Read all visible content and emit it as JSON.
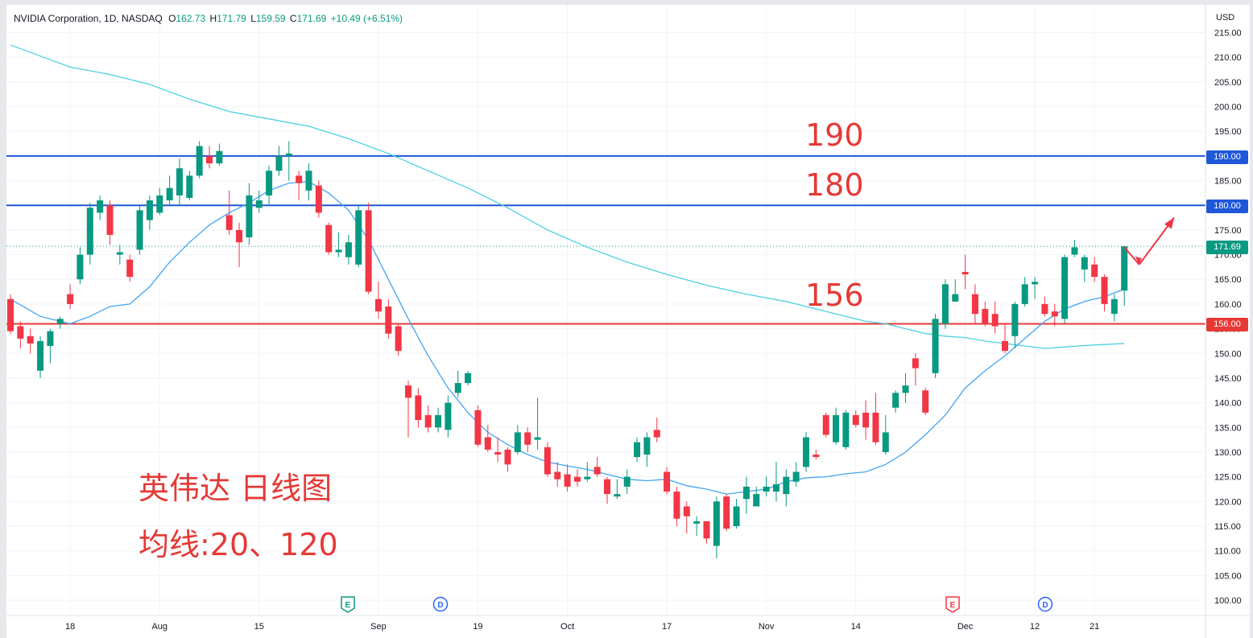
{
  "header": {
    "symbol": "NVIDIA Corporation, 1D, NASDAQ",
    "open_label": "O",
    "open": "162.73",
    "high_label": "H",
    "high": "171.79",
    "low_label": "L",
    "low": "159.59",
    "close_label": "C",
    "close": "171.69",
    "change": "+10.49 (+6.51%)"
  },
  "axis": {
    "currency": "USD"
  },
  "price_tags": {
    "level_190": "190.00",
    "level_180": "180.00",
    "last": "171.69",
    "level_156": "156.00"
  },
  "annotations": {
    "a190": "190",
    "a180": "180",
    "a156": "156",
    "title": "英伟达 日线图",
    "ma": "均线:20、120"
  },
  "event_markers": [
    {
      "label": "E",
      "color": "#089981"
    },
    {
      "label": "D",
      "color": "#2962ff"
    },
    {
      "label": "E",
      "color": "#f23645"
    },
    {
      "label": "D",
      "color": "#2962ff"
    }
  ],
  "colors": {
    "up": "#089981",
    "down": "#f23645",
    "ma20": "#42a5f5",
    "ma120": "#4dd0e1",
    "hline_blue": "#1e57d8",
    "hline_red": "#e53935",
    "annotation": "#e53935"
  },
  "chart_data": {
    "type": "candlestick",
    "ylim": [
      96,
      219
    ],
    "yticks": [
      100,
      105,
      110,
      115,
      120,
      125,
      130,
      135,
      140,
      145,
      150,
      155,
      160,
      165,
      170,
      175,
      180,
      185,
      190,
      195,
      200,
      205,
      210,
      215
    ],
    "xlim": [
      0,
      115
    ],
    "xticks": [
      {
        "label": "18",
        "x": 6
      },
      {
        "label": "Aug",
        "x": 15
      },
      {
        "label": "15",
        "x": 25
      },
      {
        "label": "Sep",
        "x": 37
      },
      {
        "label": "19",
        "x": 47
      },
      {
        "label": "Oct",
        "x": 56
      },
      {
        "label": "17",
        "x": 66
      },
      {
        "label": "Nov",
        "x": 76
      },
      {
        "label": "14",
        "x": 85
      },
      {
        "label": "Dec",
        "x": 96
      },
      {
        "label": "12",
        "x": 103
      },
      {
        "label": "21",
        "x": 109
      }
    ],
    "horizontal_levels": [
      {
        "value": 190,
        "color": "#1e57d8"
      },
      {
        "value": 180,
        "color": "#1e57d8"
      },
      {
        "value": 156,
        "color": "#e53935"
      }
    ],
    "last_price": 171.69,
    "candles": [
      [
        0,
        161.0,
        154.5,
        162.0,
        154.0
      ],
      [
        1,
        155.5,
        153.0,
        156.5,
        151.0
      ],
      [
        2,
        153.5,
        152.0,
        155.0,
        150.0
      ],
      [
        3,
        146.5,
        152.5,
        153.5,
        145.0
      ],
      [
        4,
        151.5,
        154.5,
        155.0,
        148.0
      ],
      [
        5,
        156.0,
        157.0,
        157.5,
        155.0
      ],
      [
        6,
        162.0,
        160.0,
        164.0,
        159.0
      ],
      [
        7,
        165.0,
        170.0,
        171.5,
        164.0
      ],
      [
        8,
        170.0,
        179.5,
        180.5,
        168.0
      ],
      [
        9,
        178.5,
        181.0,
        182.0,
        177.0
      ],
      [
        10,
        180.0,
        174.0,
        181.0,
        172.0
      ],
      [
        11,
        170.0,
        170.5,
        172.0,
        168.0
      ],
      [
        12,
        169.0,
        165.5,
        170.0,
        164.5
      ],
      [
        13,
        171.0,
        179.0,
        180.0,
        170.0
      ],
      [
        14,
        177.0,
        181.0,
        182.0,
        175.0
      ],
      [
        15,
        178.5,
        182.0,
        183.5,
        178.0
      ],
      [
        16,
        181.0,
        183.5,
        186.0,
        180.0
      ],
      [
        17,
        182.0,
        187.5,
        189.5,
        180.0
      ],
      [
        18,
        181.5,
        186.0,
        187.0,
        181.0
      ],
      [
        19,
        186.0,
        192.0,
        193.0,
        185.5
      ],
      [
        20,
        190.0,
        188.5,
        192.0,
        187.5
      ],
      [
        21,
        188.5,
        191.0,
        192.5,
        188.0
      ],
      [
        22,
        178.0,
        175.0,
        183.0,
        174.0
      ],
      [
        23,
        175.0,
        172.5,
        176.5,
        167.5
      ],
      [
        24,
        173.5,
        182.0,
        184.5,
        172.0
      ],
      [
        25,
        179.5,
        181.0,
        183.0,
        178.5
      ],
      [
        26,
        182.0,
        187.0,
        188.0,
        180.0
      ],
      [
        27,
        187.0,
        190.0,
        192.0,
        186.0
      ],
      [
        28,
        190.0,
        190.5,
        193.0,
        185.0
      ],
      [
        29,
        186.0,
        184.5,
        187.0,
        181.0
      ],
      [
        30,
        183.0,
        187.0,
        188.5,
        181.0
      ],
      [
        31,
        184.0,
        178.5,
        185.0,
        177.5
      ],
      [
        32,
        176.0,
        170.5,
        176.5,
        170.0
      ],
      [
        33,
        170.5,
        171.0,
        174.5,
        169.5
      ],
      [
        34,
        169.5,
        172.5,
        174.0,
        168.0
      ],
      [
        35,
        168.0,
        179.0,
        180.0,
        167.5
      ],
      [
        36,
        179.0,
        162.5,
        180.5,
        162.0
      ],
      [
        37,
        161.0,
        158.5,
        164.5,
        157.0
      ],
      [
        38,
        159.5,
        154.0,
        161.0,
        153.0
      ],
      [
        39,
        155.5,
        150.5,
        156.0,
        149.5
      ],
      [
        40,
        143.5,
        141.0,
        144.5,
        133.0
      ],
      [
        41,
        141.5,
        136.5,
        143.0,
        135.0
      ],
      [
        42,
        137.5,
        135.0,
        139.5,
        134.0
      ],
      [
        43,
        135.0,
        137.5,
        139.0,
        134.0
      ],
      [
        44,
        134.5,
        140.0,
        141.5,
        133.0
      ],
      [
        45,
        142.0,
        144.0,
        146.5,
        141.0
      ],
      [
        46,
        144.0,
        146.0,
        146.5,
        143.5
      ],
      [
        47,
        138.5,
        131.5,
        139.5,
        131.0
      ],
      [
        48,
        133.0,
        130.5,
        135.5,
        130.0
      ],
      [
        49,
        130.0,
        129.5,
        133.0,
        128.0
      ],
      [
        50,
        130.5,
        127.5,
        131.0,
        126.0
      ],
      [
        51,
        130.0,
        134.0,
        135.5,
        129.5
      ],
      [
        52,
        134.0,
        131.5,
        135.0,
        130.0
      ],
      [
        53,
        132.5,
        133.0,
        141.0,
        130.5
      ],
      [
        54,
        131.0,
        125.5,
        132.0,
        125.0
      ],
      [
        55,
        126.0,
        124.5,
        128.0,
        123.0
      ],
      [
        56,
        125.5,
        123.0,
        127.5,
        122.0
      ],
      [
        57,
        125.0,
        124.0,
        126.5,
        123.0
      ],
      [
        58,
        124.5,
        125.0,
        128.0,
        124.0
      ],
      [
        59,
        127.0,
        125.5,
        129.0,
        125.0
      ],
      [
        60,
        124.5,
        121.5,
        125.0,
        119.5
      ],
      [
        61,
        121.0,
        121.5,
        124.5,
        120.5
      ],
      [
        62,
        123.0,
        125.0,
        126.5,
        121.5
      ],
      [
        63,
        129.0,
        132.0,
        133.0,
        128.0
      ],
      [
        64,
        129.5,
        133.0,
        134.0,
        127.0
      ],
      [
        65,
        134.5,
        133.0,
        137.0,
        132.0
      ],
      [
        66,
        126.0,
        122.0,
        127.0,
        121.5
      ],
      [
        67,
        122.0,
        116.5,
        123.0,
        115.0
      ],
      [
        68,
        119.0,
        117.0,
        120.0,
        113.5
      ],
      [
        69,
        115.5,
        116.0,
        117.0,
        113.0
      ],
      [
        70,
        116.0,
        112.5,
        116.0,
        111.5
      ],
      [
        71,
        111.0,
        120.0,
        121.0,
        108.5
      ],
      [
        72,
        121.0,
        114.5,
        121.5,
        114.0
      ],
      [
        73,
        115.0,
        119.0,
        120.5,
        114.5
      ],
      [
        74,
        120.5,
        123.0,
        125.0,
        117.5
      ],
      [
        75,
        119.0,
        121.5,
        123.0,
        119.0
      ],
      [
        76,
        122.0,
        123.0,
        125.0,
        121.0
      ],
      [
        77,
        122.0,
        123.5,
        128.0,
        120.0
      ],
      [
        78,
        121.5,
        125.0,
        126.5,
        119.0
      ],
      [
        79,
        124.0,
        126.0,
        128.0,
        123.0
      ],
      [
        80,
        127.0,
        133.0,
        134.0,
        126.0
      ],
      [
        81,
        129.5,
        129.0,
        130.5,
        128.5
      ],
      [
        82,
        137.5,
        133.5,
        138.0,
        133.0
      ],
      [
        83,
        132.0,
        137.5,
        139.0,
        131.5
      ],
      [
        84,
        131.0,
        138.0,
        138.5,
        130.5
      ],
      [
        85,
        137.5,
        135.5,
        138.5,
        135.0
      ],
      [
        86,
        138.0,
        135.0,
        140.5,
        132.5
      ],
      [
        87,
        138.0,
        132.0,
        142.0,
        131.5
      ],
      [
        88,
        130.0,
        134.0,
        137.5,
        129.5
      ],
      [
        89,
        139.0,
        142.0,
        142.5,
        138.0
      ],
      [
        90,
        142.0,
        143.5,
        146.0,
        140.0
      ],
      [
        91,
        149.0,
        147.0,
        150.0,
        143.5
      ],
      [
        92,
        142.5,
        138.0,
        143.0,
        137.5
      ],
      [
        93,
        146.0,
        157.0,
        158.0,
        145.0
      ],
      [
        94,
        156.0,
        164.0,
        165.0,
        155.0
      ],
      [
        95,
        160.5,
        162.0,
        165.0,
        161.0
      ],
      [
        96,
        166.5,
        166.0,
        170.0,
        163.0
      ],
      [
        97,
        162.0,
        158.0,
        164.0,
        156.0
      ],
      [
        98,
        159.0,
        156.0,
        160.5,
        155.5
      ],
      [
        99,
        158.0,
        155.5,
        160.5,
        154.0
      ],
      [
        100,
        152.5,
        150.5,
        156.0,
        150.0
      ],
      [
        101,
        153.5,
        160.0,
        160.5,
        151.0
      ],
      [
        102,
        160.0,
        164.0,
        165.5,
        159.5
      ],
      [
        103,
        164.0,
        164.5,
        165.5,
        161.0
      ],
      [
        104,
        160.0,
        158.0,
        161.5,
        157.5
      ],
      [
        105,
        158.5,
        157.5,
        160.0,
        155.5
      ],
      [
        106,
        157.0,
        169.5,
        170.0,
        156.0
      ],
      [
        107,
        170.0,
        171.5,
        173.0,
        169.5
      ],
      [
        108,
        167.0,
        169.5,
        170.0,
        164.5
      ],
      [
        109,
        168.0,
        165.5,
        169.5,
        164.5
      ],
      [
        110,
        165.5,
        160.0,
        166.0,
        158.5
      ],
      [
        111,
        158.0,
        161.0,
        162.0,
        156.5
      ],
      [
        112,
        162.73,
        171.69,
        171.79,
        159.59
      ]
    ],
    "ma20": [
      [
        0,
        161
      ],
      [
        3,
        157.5
      ],
      [
        6,
        156
      ],
      [
        8,
        157.5
      ],
      [
        10,
        159.5
      ],
      [
        12,
        160
      ],
      [
        14,
        163.5
      ],
      [
        16,
        168.5
      ],
      [
        18,
        172.5
      ],
      [
        20,
        176
      ],
      [
        22,
        178.5
      ],
      [
        24,
        180.5
      ],
      [
        26,
        183
      ],
      [
        28,
        184.5
      ],
      [
        30,
        184.8
      ],
      [
        32,
        182.5
      ],
      [
        34,
        179
      ],
      [
        36,
        173
      ],
      [
        38,
        165
      ],
      [
        40,
        157
      ],
      [
        42,
        149.5
      ],
      [
        44,
        143
      ],
      [
        46,
        138
      ],
      [
        48,
        134
      ],
      [
        50,
        131.5
      ],
      [
        52,
        129.5
      ],
      [
        54,
        128
      ],
      [
        56,
        127.2
      ],
      [
        58,
        126.5
      ],
      [
        60,
        125.5
      ],
      [
        62,
        124.5
      ],
      [
        64,
        124.2
      ],
      [
        66,
        124.5
      ],
      [
        68,
        123.2
      ],
      [
        70,
        122.5
      ],
      [
        72,
        121.5
      ],
      [
        74,
        122
      ],
      [
        76,
        122.5
      ],
      [
        78,
        124
      ],
      [
        80,
        124.8
      ],
      [
        82,
        125.0
      ],
      [
        84,
        125.6
      ],
      [
        86,
        126.0
      ],
      [
        88,
        127.5
      ],
      [
        90,
        130
      ],
      [
        92,
        133.5
      ],
      [
        94,
        137.5
      ],
      [
        96,
        143
      ],
      [
        98,
        146.5
      ],
      [
        100,
        149.5
      ],
      [
        102,
        153
      ],
      [
        104,
        156.5
      ],
      [
        106,
        159
      ],
      [
        108,
        160.5
      ],
      [
        110,
        161.5
      ],
      [
        112,
        163
      ]
    ],
    "ma120": [
      [
        0,
        212.5
      ],
      [
        4,
        209.5
      ],
      [
        6,
        208
      ],
      [
        10,
        206.5
      ],
      [
        14,
        204.5
      ],
      [
        18,
        201.5
      ],
      [
        22,
        199
      ],
      [
        26,
        197.5
      ],
      [
        30,
        196
      ],
      [
        34,
        193.5
      ],
      [
        38,
        190.5
      ],
      [
        42,
        187
      ],
      [
        46,
        183.5
      ],
      [
        50,
        179.5
      ],
      [
        54,
        175
      ],
      [
        58,
        171.5
      ],
      [
        62,
        168.5
      ],
      [
        66,
        166
      ],
      [
        70,
        163.8
      ],
      [
        74,
        162
      ],
      [
        78,
        160.5
      ],
      [
        82,
        158.5
      ],
      [
        86,
        156.5
      ],
      [
        88,
        156
      ],
      [
        90,
        155
      ],
      [
        92,
        154
      ],
      [
        94,
        153.5
      ],
      [
        96,
        153.2
      ],
      [
        98,
        152.5
      ],
      [
        100,
        152.0
      ],
      [
        102,
        151.5
      ],
      [
        104,
        151
      ],
      [
        106,
        151.3
      ],
      [
        108,
        151.6
      ],
      [
        110,
        151.8
      ],
      [
        112,
        152.0
      ]
    ],
    "arrow": [
      [
        112,
        171.5
      ],
      [
        113.5,
        168.0
      ],
      [
        117,
        177.5
      ]
    ]
  }
}
